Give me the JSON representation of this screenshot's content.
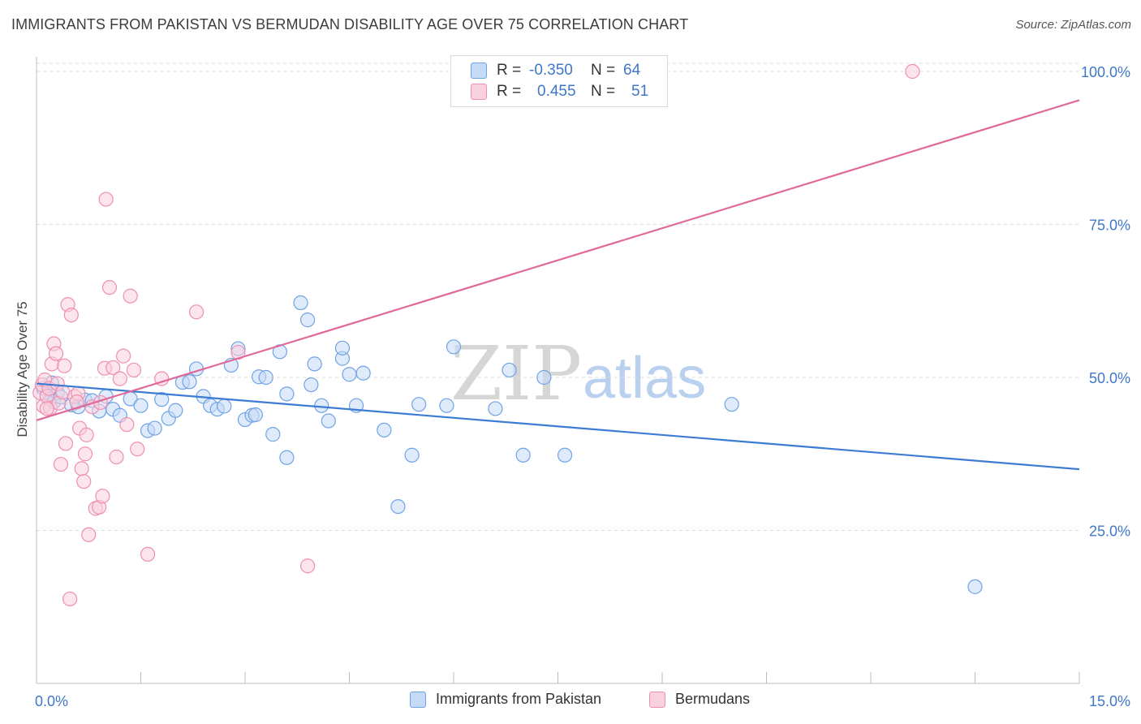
{
  "header": {
    "title": "IMMIGRANTS FROM PAKISTAN VS BERMUDAN DISABILITY AGE OVER 75 CORRELATION CHART",
    "source": "Source: ZipAtlas.com"
  },
  "watermark": {
    "zip": "ZIP",
    "atlas": "atlas"
  },
  "legend": {
    "rows": [
      {
        "r_label": "R =",
        "r_value": "-0.350",
        "n_label": "N =",
        "n_value": "64",
        "color": "#6fa3e6",
        "fill": "#c5daf6"
      },
      {
        "r_label": "R =",
        "r_value": "0.455",
        "n_label": "N =",
        "n_value": "51",
        "color": "#ee8fb1",
        "fill": "#f9d0dd"
      }
    ]
  },
  "chart_data": {
    "type": "scatter",
    "title": "IMMIGRANTS FROM PAKISTAN VS BERMUDAN DISABILITY AGE OVER 75 CORRELATION CHART",
    "xlabel": "",
    "ylabel": "Disability Age Over 75",
    "xlim": [
      0,
      15
    ],
    "ylim": [
      0,
      105
    ],
    "x_ticks": [
      {
        "value": 0,
        "label": "0.0%"
      },
      {
        "value": 15,
        "label": "15.0%"
      }
    ],
    "y_ticks": [
      {
        "value": 25,
        "label": "25.0%"
      },
      {
        "value": 50,
        "label": "50.0%"
      },
      {
        "value": 75,
        "label": "75.0%"
      },
      {
        "value": 100,
        "label": "100.0%"
      }
    ],
    "grid": true,
    "legend_position": "top-center",
    "series": [
      {
        "name": "Immigrants from Pakistan",
        "color": "#3d7bd4",
        "marker_fill": "#c5daf6",
        "marker_stroke": "#6fa3e6",
        "trend": {
          "x": [
            0,
            15
          ],
          "y": [
            49,
            35
          ]
        },
        "points": [
          [
            0.1,
            48.2
          ],
          [
            0.15,
            47.0
          ],
          [
            0.2,
            46.5
          ],
          [
            0.25,
            46.0
          ],
          [
            0.3,
            47.5
          ],
          [
            0.35,
            46.8
          ],
          [
            0.5,
            45.5
          ],
          [
            0.6,
            45.2
          ],
          [
            0.7,
            46.3
          ],
          [
            0.8,
            46.2
          ],
          [
            0.9,
            44.5
          ],
          [
            1.0,
            46.9
          ],
          [
            1.1,
            44.8
          ],
          [
            1.2,
            43.8
          ],
          [
            1.35,
            46.5
          ],
          [
            1.5,
            45.4
          ],
          [
            1.6,
            41.3
          ],
          [
            1.7,
            41.7
          ],
          [
            1.8,
            46.4
          ],
          [
            1.9,
            43.3
          ],
          [
            2.0,
            44.6
          ],
          [
            2.1,
            49.2
          ],
          [
            2.2,
            49.3
          ],
          [
            2.3,
            51.4
          ],
          [
            2.4,
            46.9
          ],
          [
            2.5,
            45.4
          ],
          [
            2.6,
            44.8
          ],
          [
            2.7,
            45.3
          ],
          [
            2.8,
            52.0
          ],
          [
            2.9,
            54.7
          ],
          [
            3.0,
            43.1
          ],
          [
            3.1,
            43.8
          ],
          [
            3.15,
            43.9
          ],
          [
            3.2,
            50.1
          ],
          [
            3.3,
            50.0
          ],
          [
            3.4,
            40.7
          ],
          [
            3.5,
            54.2
          ],
          [
            3.6,
            47.3
          ],
          [
            3.6,
            36.9
          ],
          [
            3.8,
            62.2
          ],
          [
            3.9,
            59.4
          ],
          [
            3.95,
            48.8
          ],
          [
            4.0,
            52.2
          ],
          [
            4.1,
            45.4
          ],
          [
            4.2,
            42.9
          ],
          [
            4.4,
            53.1
          ],
          [
            4.4,
            54.8
          ],
          [
            4.5,
            50.5
          ],
          [
            4.6,
            45.4
          ],
          [
            4.7,
            50.7
          ],
          [
            5.0,
            41.4
          ],
          [
            5.2,
            28.9
          ],
          [
            5.4,
            37.3
          ],
          [
            5.5,
            45.6
          ],
          [
            5.9,
            45.4
          ],
          [
            6.0,
            55.0
          ],
          [
            6.6,
            44.9
          ],
          [
            6.8,
            51.2
          ],
          [
            7.0,
            37.3
          ],
          [
            7.3,
            50.0
          ],
          [
            7.6,
            37.3
          ],
          [
            10.0,
            45.6
          ],
          [
            13.5,
            15.8
          ],
          [
            0.22,
            49.1
          ]
        ]
      },
      {
        "name": "Bermudans",
        "color": "#e0699a",
        "marker_fill": "#f9d0dd",
        "marker_stroke": "#ee8fb1",
        "trend": {
          "x": [
            0,
            15
          ],
          "y": [
            43,
            95.3
          ]
        },
        "points": [
          [
            0.05,
            47.5
          ],
          [
            0.08,
            48.8
          ],
          [
            0.1,
            45.3
          ],
          [
            0.12,
            49.6
          ],
          [
            0.15,
            46.9
          ],
          [
            0.18,
            48.2
          ],
          [
            0.2,
            45.0
          ],
          [
            0.22,
            52.2
          ],
          [
            0.25,
            55.5
          ],
          [
            0.28,
            53.9
          ],
          [
            0.3,
            49.0
          ],
          [
            0.32,
            45.8
          ],
          [
            0.35,
            35.8
          ],
          [
            0.38,
            47.6
          ],
          [
            0.4,
            51.9
          ],
          [
            0.42,
            39.2
          ],
          [
            0.45,
            61.9
          ],
          [
            0.5,
            60.2
          ],
          [
            0.55,
            46.9
          ],
          [
            0.6,
            47.4
          ],
          [
            0.62,
            41.7
          ],
          [
            0.65,
            35.1
          ],
          [
            0.68,
            33.0
          ],
          [
            0.7,
            37.5
          ],
          [
            0.72,
            40.6
          ],
          [
            0.75,
            24.3
          ],
          [
            0.8,
            45.2
          ],
          [
            0.85,
            28.6
          ],
          [
            0.9,
            28.8
          ],
          [
            0.92,
            45.9
          ],
          [
            0.95,
            30.6
          ],
          [
            0.98,
            51.5
          ],
          [
            1.0,
            79.1
          ],
          [
            1.05,
            64.7
          ],
          [
            1.1,
            51.6
          ],
          [
            1.15,
            37.0
          ],
          [
            1.2,
            49.8
          ],
          [
            1.25,
            53.5
          ],
          [
            1.3,
            42.3
          ],
          [
            1.35,
            63.3
          ],
          [
            1.4,
            51.2
          ],
          [
            1.45,
            38.3
          ],
          [
            1.6,
            21.1
          ],
          [
            1.8,
            49.8
          ],
          [
            2.3,
            60.7
          ],
          [
            2.9,
            54.1
          ],
          [
            3.9,
            19.2
          ],
          [
            0.48,
            13.8
          ],
          [
            12.6,
            100.0
          ],
          [
            0.58,
            46.0
          ],
          [
            0.15,
            44.9
          ]
        ]
      }
    ]
  }
}
